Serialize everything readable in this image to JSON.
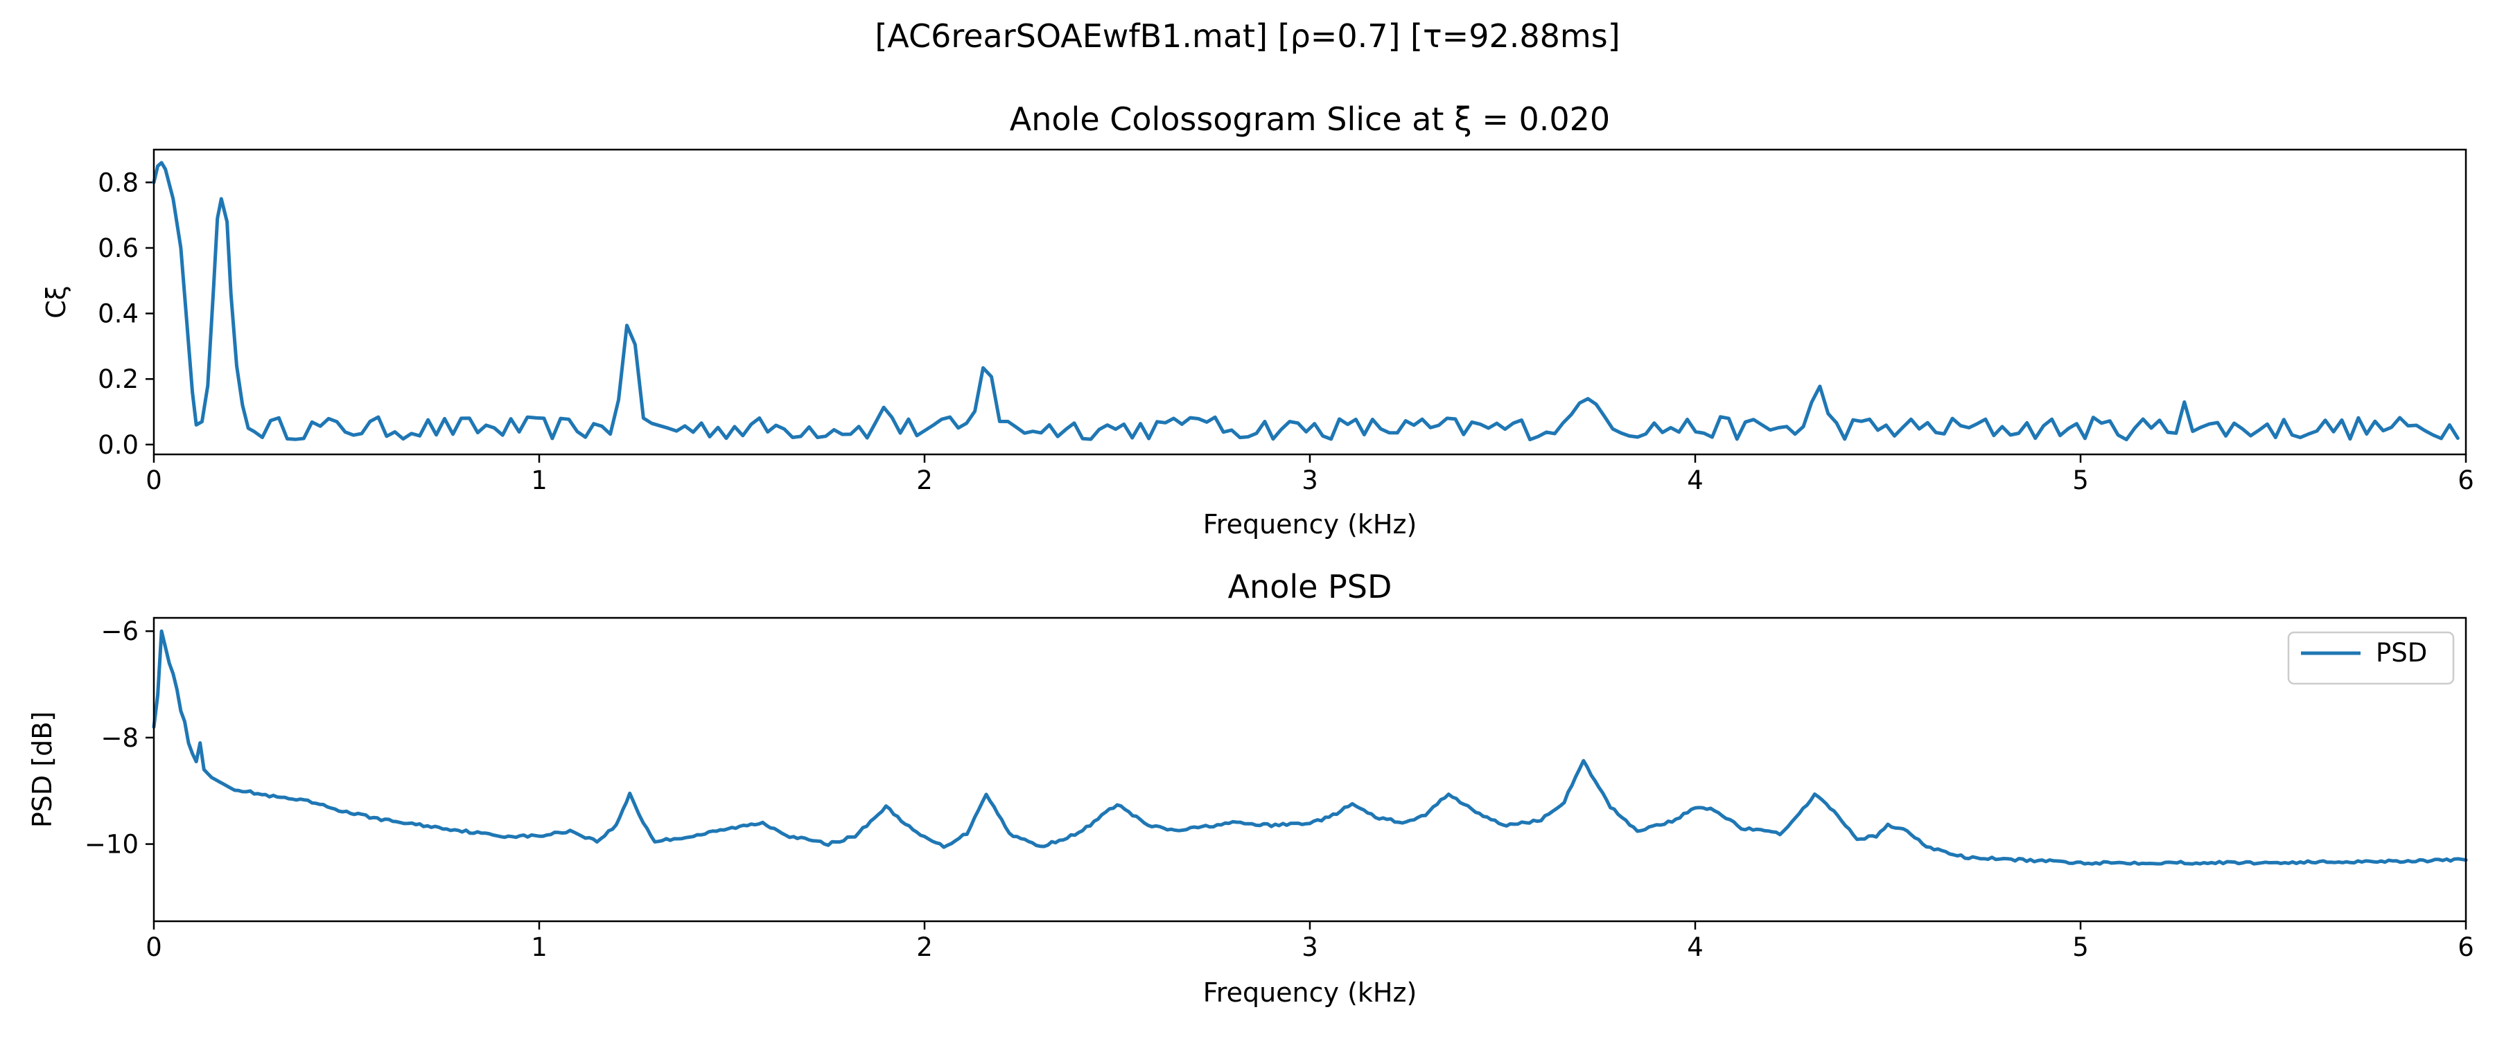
{
  "figure": {
    "suptitle": "[AC6rearSOAEwfB1.mat]   [ρ=0.7]   [τ=92.88ms]",
    "background": "#ffffff"
  },
  "chart_data": [
    {
      "type": "line",
      "title": "Anole Colossogram Slice at ξ = 0.020",
      "xlabel": "Frequency (kHz)",
      "ylabel": "Cξ",
      "xlim": [
        0,
        6
      ],
      "ylim": [
        -0.03,
        0.9
      ],
      "xticks": [
        0,
        1,
        2,
        3,
        4,
        5,
        6
      ],
      "xtick_labels": [
        "0",
        "1",
        "2",
        "3",
        "4",
        "5",
        "6"
      ],
      "yticks": [
        0.0,
        0.2,
        0.4,
        0.6,
        0.8
      ],
      "ytick_labels": [
        "0.0",
        "0.2",
        "0.4",
        "0.6",
        "0.8"
      ],
      "grid": false,
      "line_color": "#1f77b4",
      "baseline": {
        "level": 0.05,
        "amplitude": 0.035,
        "step_khz": 0.0215
      },
      "points": [
        [
          0.0,
          0.8
        ],
        [
          0.01,
          0.85
        ],
        [
          0.02,
          0.86
        ],
        [
          0.03,
          0.84
        ],
        [
          0.05,
          0.75
        ],
        [
          0.07,
          0.6
        ],
        [
          0.085,
          0.38
        ],
        [
          0.1,
          0.16
        ],
        [
          0.11,
          0.06
        ],
        [
          0.125,
          0.07
        ],
        [
          0.14,
          0.18
        ],
        [
          0.155,
          0.48
        ],
        [
          0.165,
          0.69
        ],
        [
          0.175,
          0.75
        ],
        [
          0.19,
          0.68
        ],
        [
          0.2,
          0.46
        ],
        [
          0.215,
          0.24
        ],
        [
          0.23,
          0.12
        ],
        [
          0.245,
          0.05
        ],
        [
          0.26,
          0.04
        ]
      ],
      "peaks": [
        {
          "center": 1.235,
          "height": 0.39,
          "width": 0.02
        },
        {
          "center": 1.9,
          "height": 0.12,
          "width": 0.018
        },
        {
          "center": 2.16,
          "height": 0.25,
          "width": 0.022
        },
        {
          "center": 2.7,
          "height": 0.12,
          "width": 0.012
        },
        {
          "center": 3.72,
          "height": 0.14,
          "width": 0.045
        },
        {
          "center": 4.32,
          "height": 0.18,
          "width": 0.022
        },
        {
          "center": 5.27,
          "height": 0.13,
          "width": 0.01
        }
      ]
    },
    {
      "type": "line",
      "title": "Anole PSD",
      "xlabel": "Frequency (kHz)",
      "ylabel": "PSD [dB]",
      "xlim": [
        0,
        6
      ],
      "ylim": [
        -11.45,
        -5.75
      ],
      "xticks": [
        0,
        1,
        2,
        3,
        4,
        5,
        6
      ],
      "xtick_labels": [
        "0",
        "1",
        "2",
        "3",
        "4",
        "5",
        "6"
      ],
      "yticks": [
        -10,
        -8,
        -6
      ],
      "ytick_labels": [
        "−10",
        "−8",
        "−6"
      ],
      "grid": false,
      "legend": {
        "position": "top-right"
      },
      "series": [
        {
          "name": "PSD",
          "color": "#1f77b4",
          "points": [
            [
              0.0,
              -7.8
            ],
            [
              0.01,
              -7.2
            ],
            [
              0.02,
              -6.0
            ],
            [
              0.03,
              -6.3
            ],
            [
              0.04,
              -6.6
            ],
            [
              0.05,
              -6.8
            ],
            [
              0.06,
              -7.1
            ],
            [
              0.07,
              -7.5
            ],
            [
              0.08,
              -7.7
            ],
            [
              0.09,
              -8.1
            ],
            [
              0.1,
              -8.3
            ],
            [
              0.11,
              -8.45
            ],
            [
              0.12,
              -8.1
            ],
            [
              0.13,
              -8.6
            ],
            [
              0.15,
              -8.75
            ],
            [
              0.2,
              -8.95
            ],
            [
              0.3,
              -9.1
            ],
            [
              0.4,
              -9.2
            ],
            [
              0.5,
              -9.4
            ],
            [
              0.6,
              -9.55
            ],
            [
              0.7,
              -9.65
            ],
            [
              0.8,
              -9.75
            ],
            [
              0.9,
              -9.85
            ],
            [
              1.0,
              -9.85
            ],
            [
              1.08,
              -9.75
            ],
            [
              1.15,
              -9.95
            ],
            [
              1.2,
              -9.65
            ],
            [
              1.235,
              -9.05
            ],
            [
              1.27,
              -9.6
            ],
            [
              1.3,
              -9.95
            ],
            [
              1.4,
              -9.85
            ],
            [
              1.5,
              -9.7
            ],
            [
              1.58,
              -9.6
            ],
            [
              1.65,
              -9.85
            ],
            [
              1.75,
              -10.0
            ],
            [
              1.82,
              -9.85
            ],
            [
              1.9,
              -9.3
            ],
            [
              1.98,
              -9.8
            ],
            [
              2.05,
              -10.05
            ],
            [
              2.11,
              -9.8
            ],
            [
              2.16,
              -9.05
            ],
            [
              2.22,
              -9.8
            ],
            [
              2.3,
              -10.05
            ],
            [
              2.4,
              -9.8
            ],
            [
              2.5,
              -9.25
            ],
            [
              2.58,
              -9.65
            ],
            [
              2.65,
              -9.75
            ],
            [
              2.8,
              -9.6
            ],
            [
              2.9,
              -9.65
            ],
            [
              3.0,
              -9.6
            ],
            [
              3.05,
              -9.5
            ],
            [
              3.11,
              -9.25
            ],
            [
              3.17,
              -9.5
            ],
            [
              3.25,
              -9.6
            ],
            [
              3.3,
              -9.45
            ],
            [
              3.36,
              -9.05
            ],
            [
              3.42,
              -9.35
            ],
            [
              3.5,
              -9.65
            ],
            [
              3.6,
              -9.55
            ],
            [
              3.66,
              -9.2
            ],
            [
              3.71,
              -8.45
            ],
            [
              3.78,
              -9.3
            ],
            [
              3.85,
              -9.75
            ],
            [
              3.95,
              -9.55
            ],
            [
              4.0,
              -9.3
            ],
            [
              4.05,
              -9.35
            ],
            [
              4.12,
              -9.7
            ],
            [
              4.22,
              -9.8
            ],
            [
              4.27,
              -9.45
            ],
            [
              4.31,
              -9.05
            ],
            [
              4.36,
              -9.4
            ],
            [
              4.42,
              -9.9
            ],
            [
              4.47,
              -9.85
            ],
            [
              4.5,
              -9.65
            ],
            [
              4.55,
              -9.75
            ],
            [
              4.6,
              -10.05
            ],
            [
              4.7,
              -10.25
            ],
            [
              4.85,
              -10.3
            ],
            [
              5.0,
              -10.35
            ],
            [
              5.5,
              -10.35
            ],
            [
              6.0,
              -10.3
            ]
          ]
        }
      ]
    }
  ]
}
